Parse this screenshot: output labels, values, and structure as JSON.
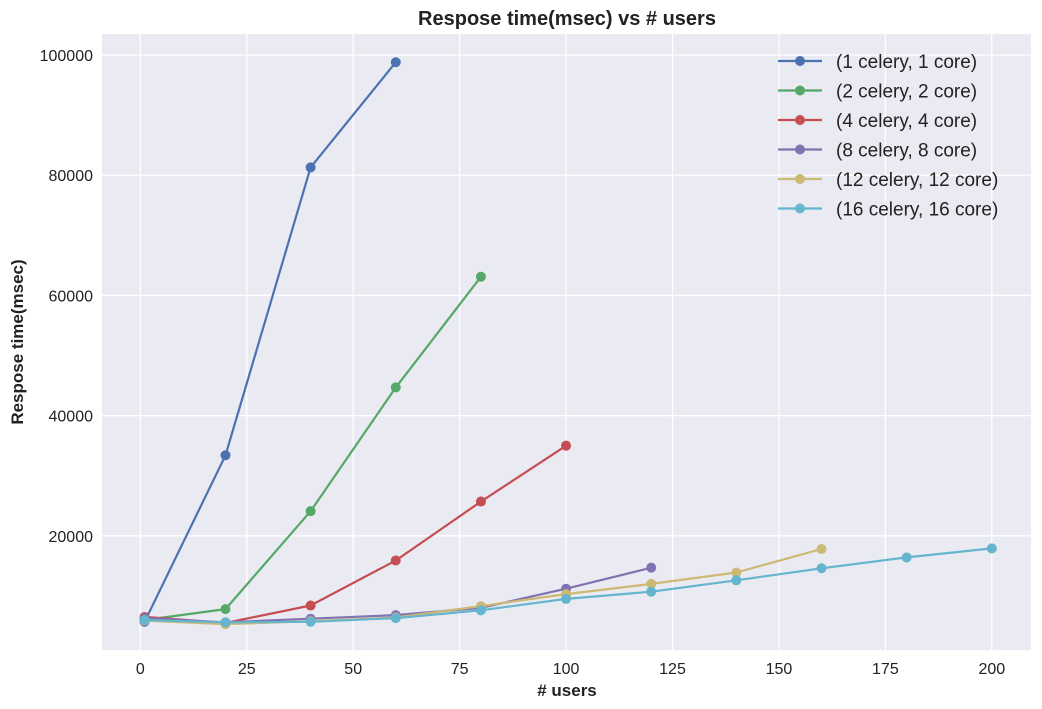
{
  "chart_data": {
    "type": "line",
    "title": "Respose time(msec) vs # users",
    "xlabel": "# users",
    "ylabel": "Respose time(msec)",
    "xlim": [
      -9,
      200
    ],
    "ylim": [
      1000,
      103500
    ],
    "xticks": [
      0,
      25,
      50,
      75,
      100,
      125,
      150,
      175,
      200
    ],
    "yticks": [
      20000,
      40000,
      60000,
      80000,
      100000
    ],
    "grid": true,
    "legend_position": "top-right",
    "series": [
      {
        "name": "(1 celery, 1 core)",
        "color": "#4C72B0",
        "x": [
          1,
          20,
          40,
          60
        ],
        "y": [
          5700,
          33400,
          81300,
          98800
        ]
      },
      {
        "name": "(2 celery, 2 core)",
        "color": "#55A868",
        "x": [
          1,
          20,
          40,
          60,
          80
        ],
        "y": [
          6000,
          7800,
          24100,
          44700,
          63100
        ]
      },
      {
        "name": "(4 celery, 4 core)",
        "color": "#C44E52",
        "x": [
          1,
          20,
          40,
          60,
          80,
          100
        ],
        "y": [
          6500,
          5500,
          8400,
          15900,
          25700,
          35000
        ]
      },
      {
        "name": "(8 celery, 8 core)",
        "color": "#8172B2",
        "x": [
          1,
          20,
          40,
          60,
          80,
          100,
          120
        ],
        "y": [
          6300,
          5600,
          6200,
          6800,
          8000,
          11200,
          14700
        ]
      },
      {
        "name": "(12 celery, 12 core)",
        "color": "#CCB974",
        "x": [
          1,
          20,
          40,
          60,
          80,
          100,
          120,
          140,
          160
        ],
        "y": [
          5900,
          5300,
          5800,
          6400,
          8300,
          10300,
          12000,
          13900,
          17800
        ]
      },
      {
        "name": "(16 celery, 16 core)",
        "color": "#64B5CD",
        "x": [
          1,
          20,
          40,
          60,
          80,
          100,
          120,
          140,
          160,
          180,
          200
        ],
        "y": [
          6000,
          5600,
          5700,
          6300,
          7600,
          9500,
          10700,
          12600,
          14600,
          16400,
          17900
        ]
      }
    ]
  }
}
